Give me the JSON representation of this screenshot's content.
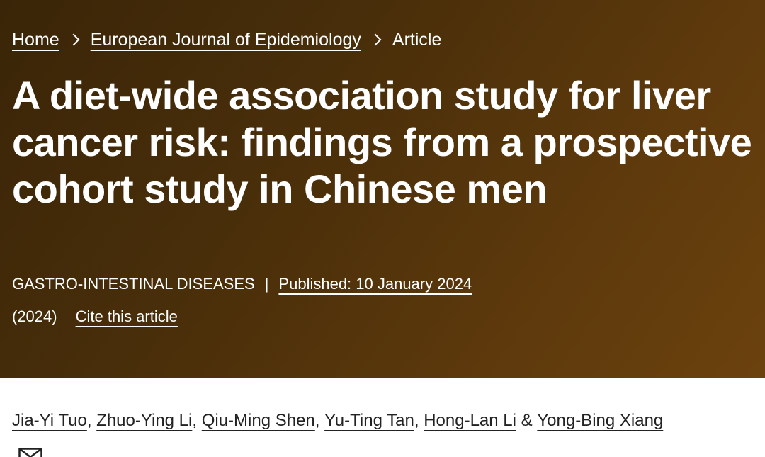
{
  "breadcrumb": {
    "home": "Home",
    "journal": "European Journal of Epidemiology",
    "current": "Article"
  },
  "article": {
    "title": "A diet-wide association study for liver cancer risk: findings from a prospective cohort study in Chinese men",
    "category": "GASTRO-INTESTINAL DISEASES",
    "separator": "|",
    "published": "Published: 10 January 2024",
    "year": "(2024)",
    "cite": "Cite this article"
  },
  "authors": {
    "names": [
      "Jia-Yi Tuo",
      "Zhuo-Ying Li",
      "Qiu-Ming Shen",
      "Yu-Ting Tan",
      "Hong-Lan Li",
      "Yong-Bing Xiang"
    ],
    "comma": ",",
    "ampersand": "&"
  },
  "icons": {
    "breadcrumb_separator": "chevron-right-icon",
    "contact": "mail-icon"
  },
  "colors": {
    "hero_dark": "#3a2508",
    "hero_light": "#6b420e",
    "text_light": "#ffffff",
    "text_dark": "#222222"
  }
}
